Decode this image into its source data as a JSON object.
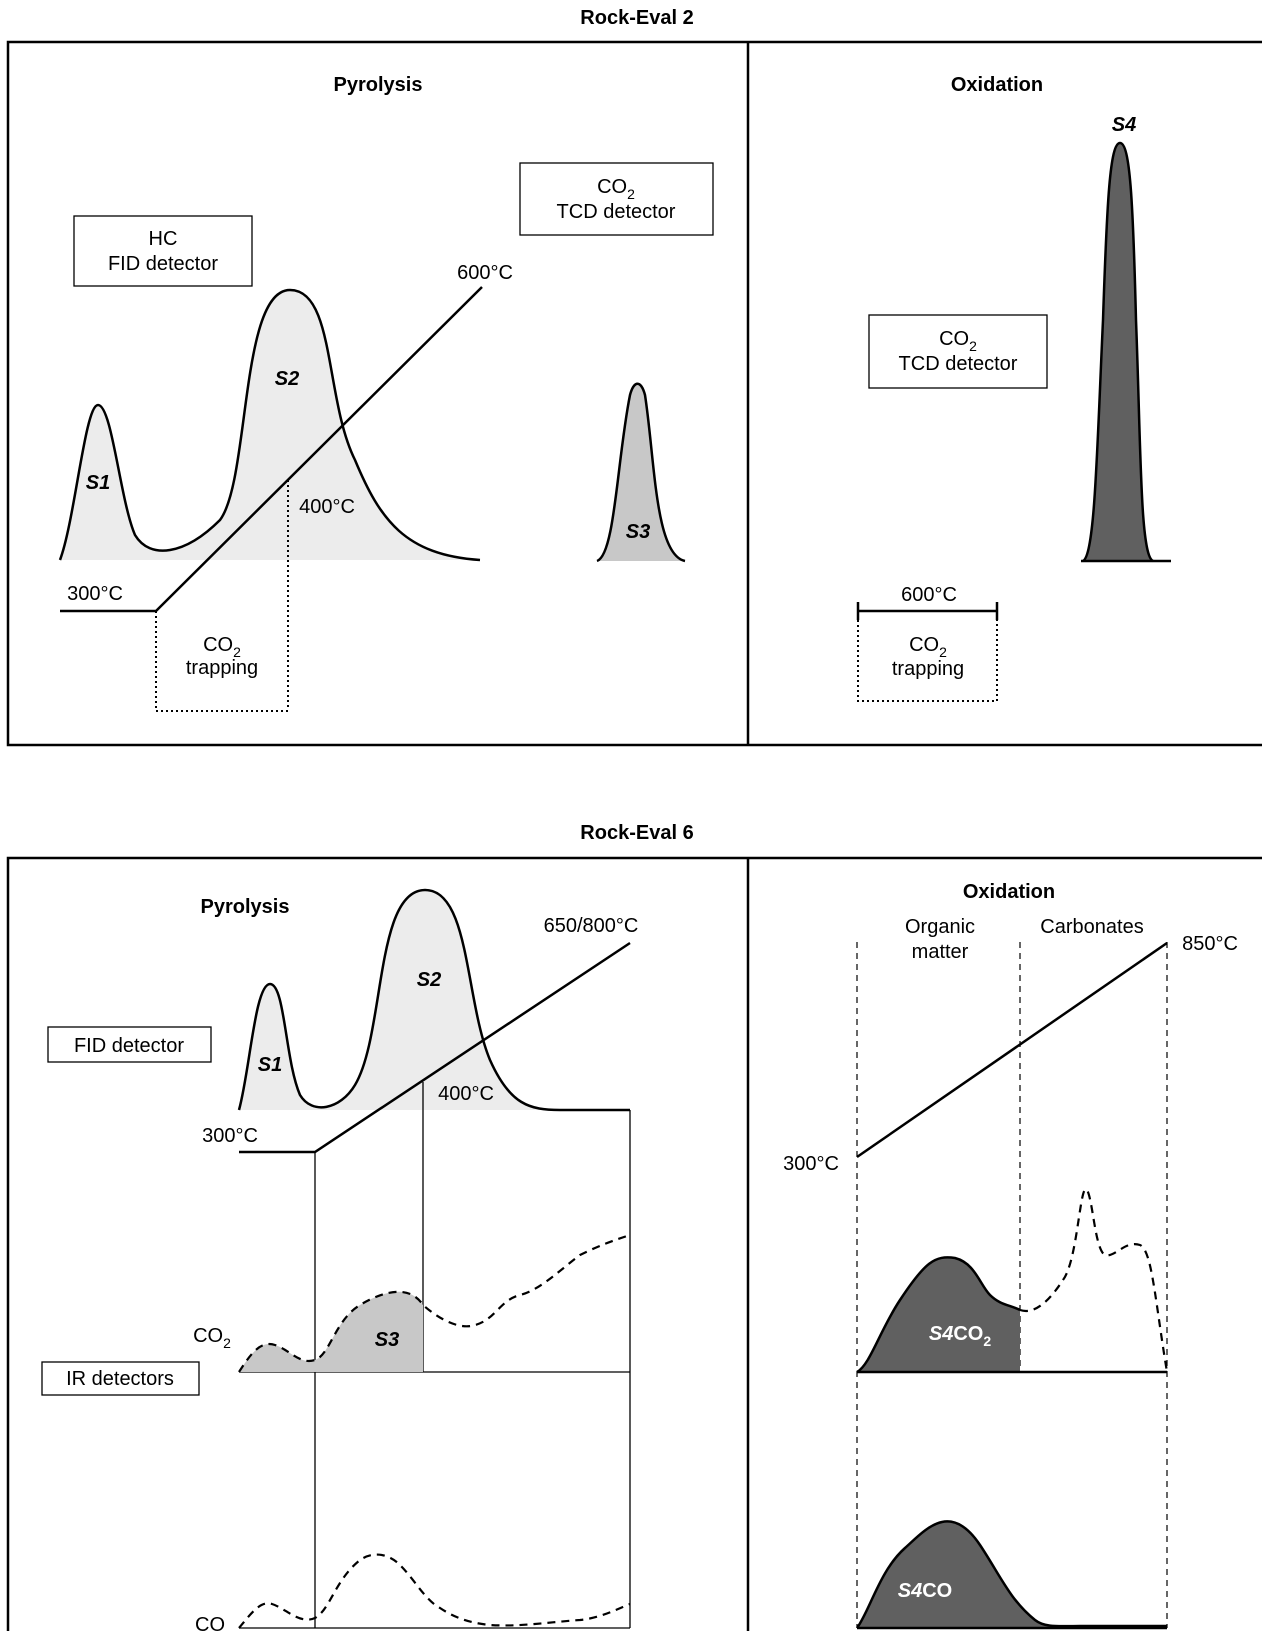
{
  "rock_eval_2": {
    "title": "Rock-Eval 2",
    "pyrolysis": {
      "title": "Pyrolysis",
      "fid_box": [
        "HC",
        "FID detector"
      ],
      "tcd_box": {
        "co": "CO",
        "sub": "2",
        "line2": "TCD detector"
      },
      "temp_600": "600°C",
      "temp_400": "400°C",
      "temp_300": "300°C",
      "trap": {
        "co": "CO",
        "sub": "2",
        "line2": "trapping"
      },
      "peaks": {
        "s1": "S1",
        "s2": "S2",
        "s3": "S3"
      }
    },
    "oxidation": {
      "title": "Oxidation",
      "peak_s4": "S4",
      "tcd_box": {
        "co": "CO",
        "sub": "2",
        "line2": "TCD detector"
      },
      "temp_600": "600°C",
      "trap": {
        "co": "CO",
        "sub": "2",
        "line2": "trapping"
      }
    }
  },
  "rock_eval_6": {
    "title": "Rock-Eval 6",
    "pyrolysis": {
      "title": "Pyrolysis",
      "temp_max": "650/800°C",
      "fid_box": "FID detector",
      "temp_400": "400°C",
      "temp_300": "300°C",
      "ir_box": "IR detectors",
      "co2_label": {
        "co": "CO",
        "sub": "2"
      },
      "co_label": "CO",
      "peaks": {
        "s1": "S1",
        "s2": "S2",
        "s3": "S3"
      }
    },
    "oxidation": {
      "title": "Oxidation",
      "organic": [
        "Organic",
        "matter"
      ],
      "carbonates": "Carbonates",
      "temp_850": "850°C",
      "temp_300": "300°C",
      "s4co2": {
        "s4": "S4",
        "co": "CO",
        "sub": "2"
      },
      "s4co": {
        "s4": "S4",
        "co": "CO"
      }
    }
  },
  "colors": {
    "light_fill": "#ececec",
    "mid_fill": "#c8c8c8",
    "dark_fill": "#606060"
  }
}
